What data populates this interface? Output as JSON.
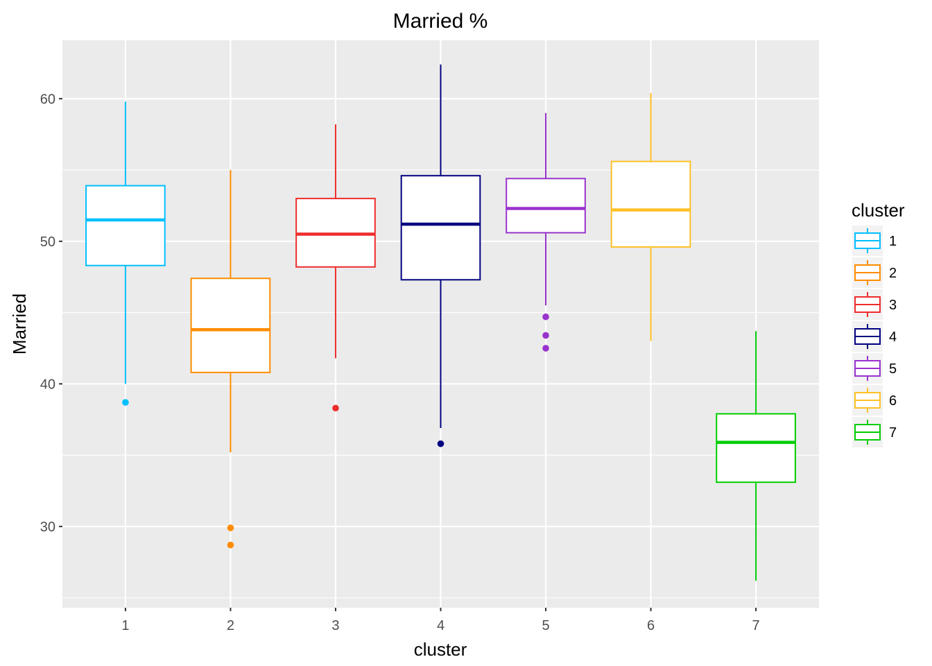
{
  "chart_data": {
    "type": "boxplot",
    "title": "Married %",
    "xlabel": "cluster",
    "ylabel": "Married",
    "ylim": [
      24.3,
      64.1
    ],
    "yticks": [
      30,
      40,
      50,
      60
    ],
    "grid": true,
    "legend": {
      "title": "cluster",
      "position": "right"
    },
    "categories": [
      "1",
      "2",
      "3",
      "4",
      "5",
      "6",
      "7"
    ],
    "series": [
      {
        "name": "1",
        "color": "#00BFFF",
        "whisker_low": 40.0,
        "q1": 48.3,
        "median": 51.5,
        "q3": 53.9,
        "whisker_high": 59.8,
        "outliers": [
          38.7
        ]
      },
      {
        "name": "2",
        "color": "#FF8C00",
        "whisker_low": 35.2,
        "q1": 40.8,
        "median": 43.8,
        "q3": 47.4,
        "whisker_high": 55.0,
        "outliers": [
          29.9,
          28.7
        ]
      },
      {
        "name": "3",
        "color": "#EE2C2C",
        "whisker_low": 41.8,
        "q1": 48.2,
        "median": 50.5,
        "q3": 53.0,
        "whisker_high": 58.2,
        "outliers": [
          38.3
        ]
      },
      {
        "name": "4",
        "color": "#000080",
        "whisker_low": 36.9,
        "q1": 47.3,
        "median": 51.2,
        "q3": 54.6,
        "whisker_high": 62.4,
        "outliers": [
          35.8
        ]
      },
      {
        "name": "5",
        "color": "#9932CC",
        "whisker_low": 45.5,
        "q1": 50.6,
        "median": 52.3,
        "q3": 54.4,
        "whisker_high": 59.0,
        "outliers": [
          44.7,
          43.4,
          42.5
        ]
      },
      {
        "name": "6",
        "color": "#FFC125",
        "whisker_low": 43.0,
        "q1": 49.6,
        "median": 52.2,
        "q3": 55.6,
        "whisker_high": 60.4,
        "outliers": []
      },
      {
        "name": "7",
        "color": "#00CD00",
        "whisker_low": 26.2,
        "q1": 33.1,
        "median": 35.9,
        "q3": 37.9,
        "whisker_high": 43.7,
        "outliers": []
      }
    ]
  }
}
